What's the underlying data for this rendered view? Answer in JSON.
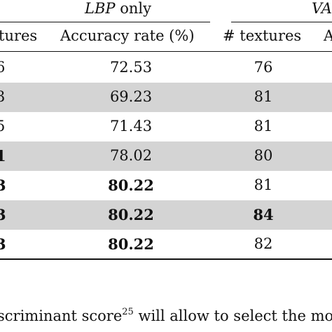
{
  "table": {
    "group_headers": [
      {
        "main": "LBP",
        "rest": "only"
      },
      {
        "main": "VA",
        "rest": ""
      }
    ],
    "columns": [
      "tures",
      "Accuracy rate (%)",
      "# textures",
      "A"
    ],
    "rows": [
      {
        "left": "6",
        "accuracy": "72.53",
        "textures": "76",
        "shaded": false,
        "left_bold": false,
        "acc_bold": false,
        "tex_bold": false
      },
      {
        "left": "3",
        "accuracy": "69.23",
        "textures": "81",
        "shaded": true,
        "left_bold": false,
        "acc_bold": false,
        "tex_bold": false
      },
      {
        "left": "5",
        "accuracy": "71.43",
        "textures": "81",
        "shaded": false,
        "left_bold": false,
        "acc_bold": false,
        "tex_bold": false
      },
      {
        "left": "1",
        "accuracy": "78.02",
        "textures": "80",
        "shaded": true,
        "left_bold": true,
        "acc_bold": false,
        "tex_bold": false
      },
      {
        "left": "3",
        "accuracy": "80.22",
        "textures": "81",
        "shaded": false,
        "left_bold": true,
        "acc_bold": true,
        "tex_bold": false
      },
      {
        "left": "3",
        "accuracy": "80.22",
        "textures": "84",
        "shaded": true,
        "left_bold": true,
        "acc_bold": true,
        "tex_bold": true
      },
      {
        "left": "3",
        "accuracy": "80.22",
        "textures": "82",
        "shaded": false,
        "left_bold": true,
        "acc_bold": true,
        "tex_bold": false
      }
    ]
  },
  "footnote": {
    "before": "scriminant score",
    "sup": "25",
    "after": " will allow to select the mo"
  }
}
